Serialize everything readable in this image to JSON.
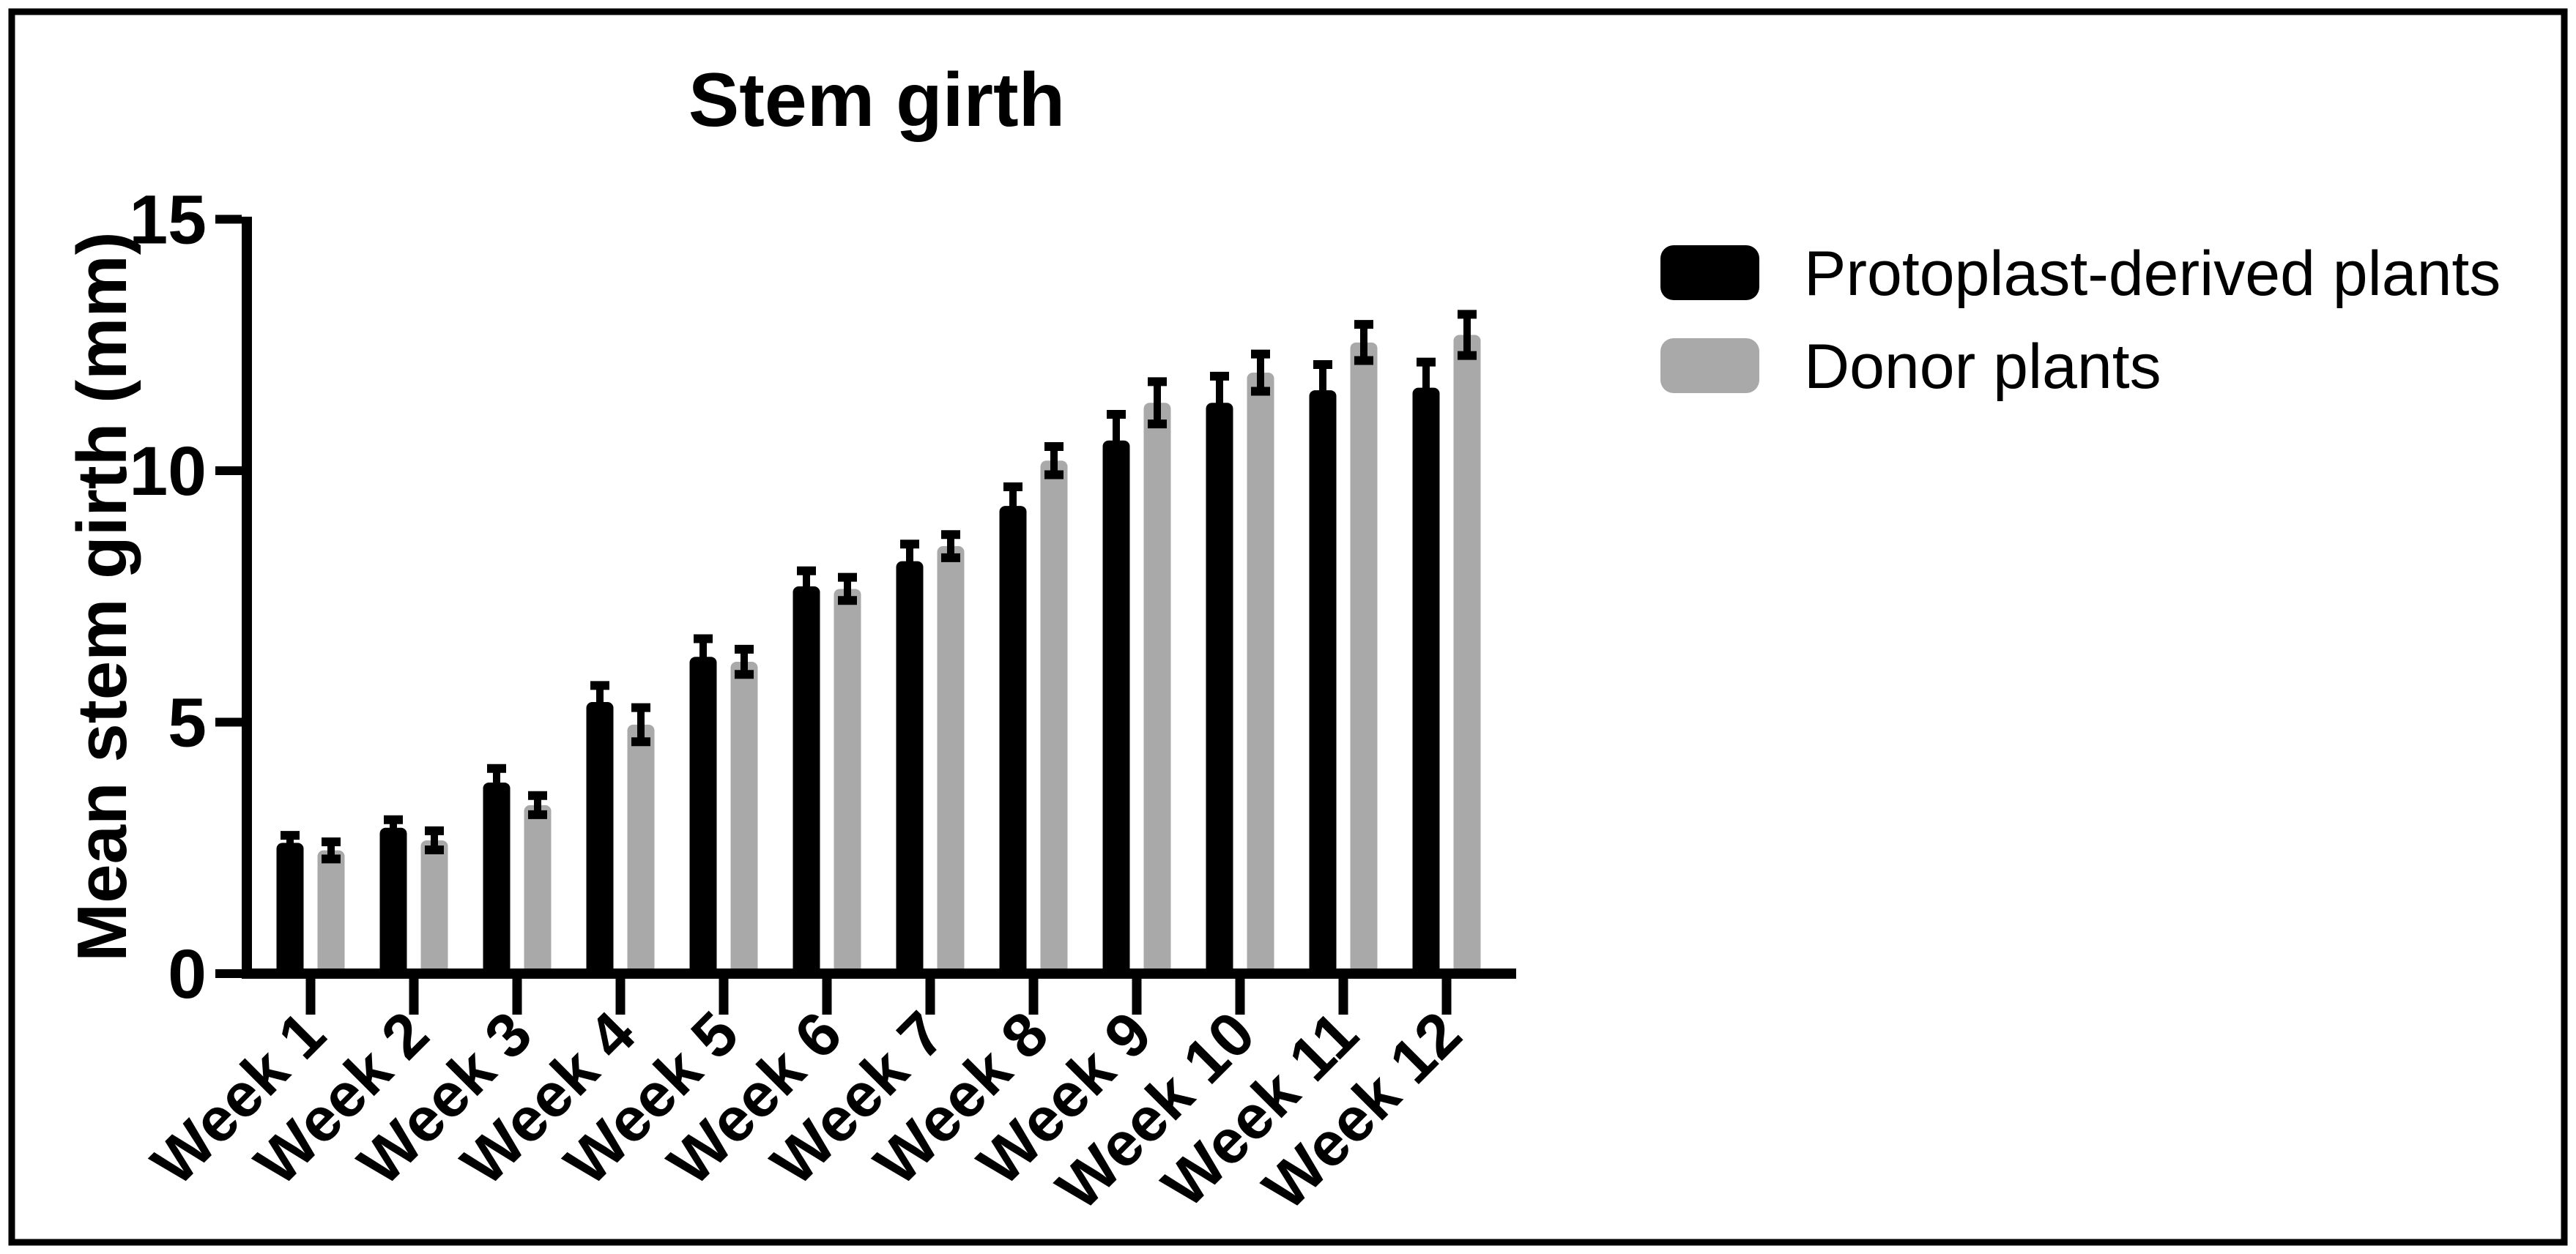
{
  "figure": {
    "background": "#ffffff",
    "border_color": "#000000",
    "text_color": "#000000"
  },
  "chart_data": {
    "type": "bar",
    "title": "Stem girth",
    "ylabel": "Mean stem girth (mm)",
    "xlabel": "",
    "ylim": [
      0,
      15
    ],
    "yticks": [
      0,
      5,
      10,
      15
    ],
    "grid": false,
    "legend_position": "right",
    "error_bars": "symmetric SD with caps",
    "categories": [
      "Week 1",
      "Week 2",
      "Week 3",
      "Week 4",
      "Week 5",
      "Week 6",
      "Week 7",
      "Week 8",
      "Week 9",
      "Week 10",
      "Week 11",
      "Week 12"
    ],
    "series": [
      {
        "name": "Protoplast-derived plants",
        "color": "#000000",
        "values": [
          2.6,
          2.9,
          3.8,
          5.4,
          6.3,
          7.7,
          8.2,
          9.3,
          10.6,
          11.35,
          11.6,
          11.65
        ],
        "errors": [
          0.15,
          0.16,
          0.28,
          0.33,
          0.36,
          0.31,
          0.34,
          0.38,
          0.52,
          0.53,
          0.51,
          0.51
        ]
      },
      {
        "name": "Donor plants",
        "color": "#a9a9a9",
        "values": [
          2.45,
          2.65,
          3.35,
          4.95,
          6.2,
          7.65,
          8.5,
          10.2,
          11.35,
          11.95,
          12.55,
          12.7
        ],
        "errors": [
          0.17,
          0.19,
          0.19,
          0.34,
          0.25,
          0.23,
          0.23,
          0.28,
          0.42,
          0.37,
          0.36,
          0.41
        ]
      }
    ]
  }
}
